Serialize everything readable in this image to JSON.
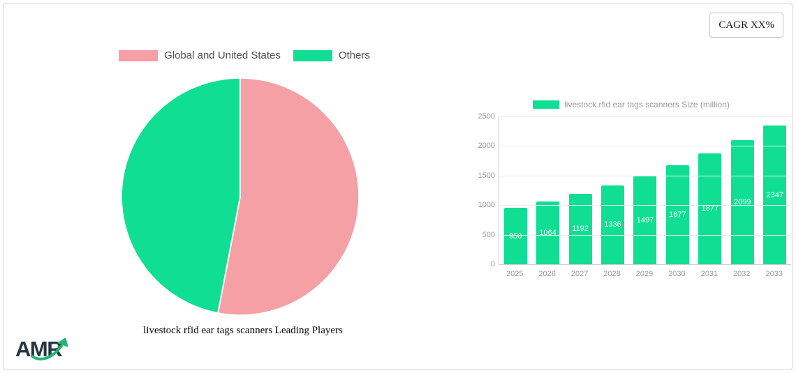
{
  "cagr": {
    "label": "CAGR XX%"
  },
  "logo": {
    "text": "AMR"
  },
  "chart_data": [
    {
      "type": "pie",
      "title": "livestock rfid ear tags scanners Leading Players",
      "labels": [
        "Global and United States",
        "Others"
      ],
      "values": [
        53,
        47
      ],
      "colors": [
        "#f4a0a5",
        "#10df93"
      ],
      "legend_position": "top",
      "divider_color": "#ffffff"
    },
    {
      "type": "bar",
      "title": "",
      "legend": "livestock rfid ear tags scanners Size (million)",
      "categories": [
        "2025",
        "2026",
        "2027",
        "2028",
        "2029",
        "2030",
        "2031",
        "2032",
        "2033"
      ],
      "values": [
        950,
        1064,
        1192,
        1336,
        1497,
        1677,
        1877,
        2099,
        2347
      ],
      "ylim": [
        0,
        2500
      ],
      "yticks": [
        0,
        500,
        1000,
        1500,
        2000,
        2500
      ],
      "grid": true,
      "legend_position": "top",
      "bar_color": "#10df93",
      "value_label_color": "#ffffff",
      "axis_label_color": "#999999"
    }
  ]
}
